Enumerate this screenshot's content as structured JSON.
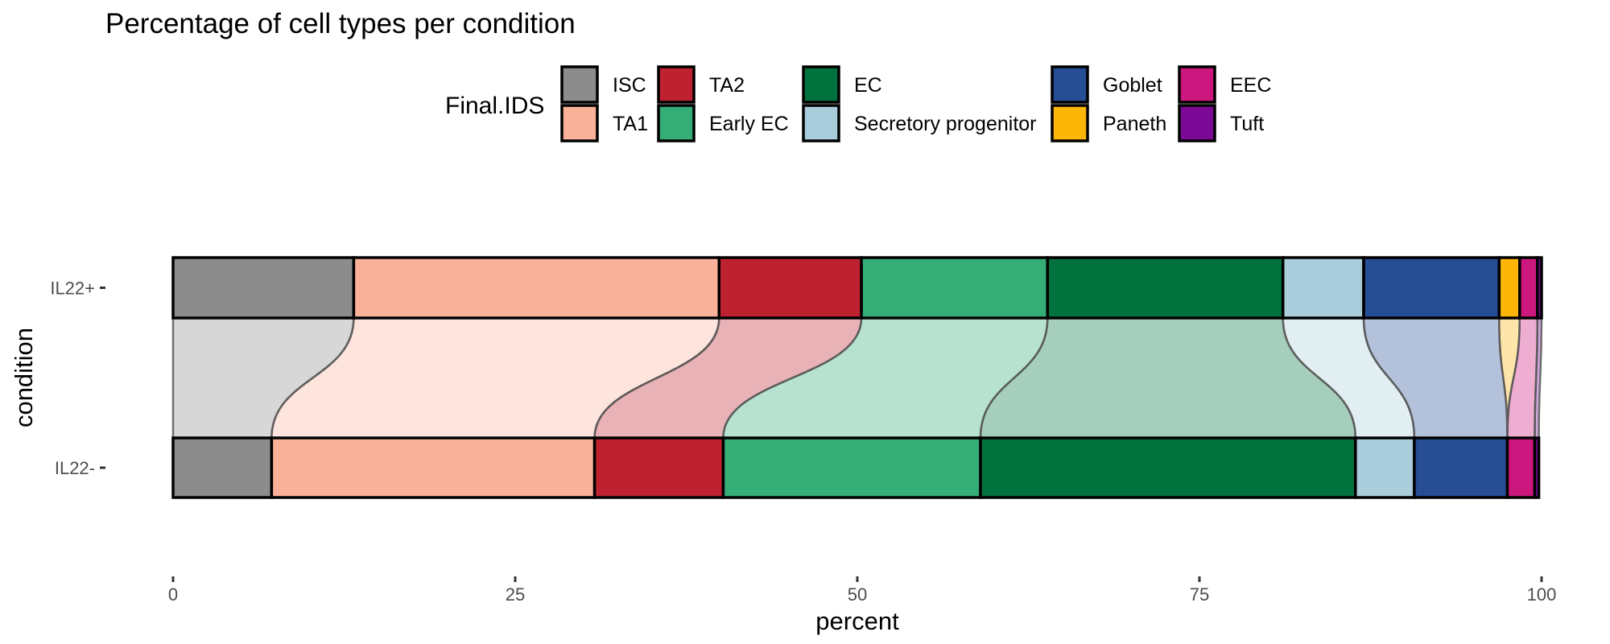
{
  "chart_data": {
    "type": "bar",
    "subtype": "stacked-100-horizontal-alluvial",
    "title": "Percentage of cell types per condition",
    "xlabel": "percent",
    "ylabel": "condition",
    "xlim": [
      0,
      100
    ],
    "xticks": [
      "0",
      "25",
      "50",
      "75",
      "100"
    ],
    "xtick_values": [
      0,
      25,
      50,
      75,
      100
    ],
    "categories": [
      "IL22+",
      "IL22-"
    ],
    "legend": {
      "title": "Final.IDS",
      "placement": "top"
    },
    "grid": false,
    "series": [
      {
        "name": "ISC",
        "color": "#8c8c8c",
        "values": [
          13.2,
          7.2
        ]
      },
      {
        "name": "TA1",
        "color": "#fab19a",
        "values": [
          26.7,
          23.6
        ]
      },
      {
        "name": "TA2",
        "color": "#be2231",
        "values": [
          10.4,
          9.4
        ]
      },
      {
        "name": "Early EC",
        "color": "#34ad77",
        "values": [
          13.6,
          18.8
        ]
      },
      {
        "name": "EC",
        "color": "#00723e",
        "values": [
          17.2,
          27.4
        ]
      },
      {
        "name": "Secretory progenitor",
        "color": "#a9cddb",
        "values": [
          5.9,
          4.3
        ]
      },
      {
        "name": "Goblet",
        "color": "#274d94",
        "values": [
          9.9,
          6.8
        ]
      },
      {
        "name": "Paneth",
        "color": "#fdb508",
        "values": [
          1.5,
          0.0
        ]
      },
      {
        "name": "EEC",
        "color": "#cc177e",
        "values": [
          1.3,
          2.0
        ]
      },
      {
        "name": "Tuft",
        "color": "#7b0996",
        "values": [
          0.3,
          0.3
        ]
      }
    ]
  }
}
